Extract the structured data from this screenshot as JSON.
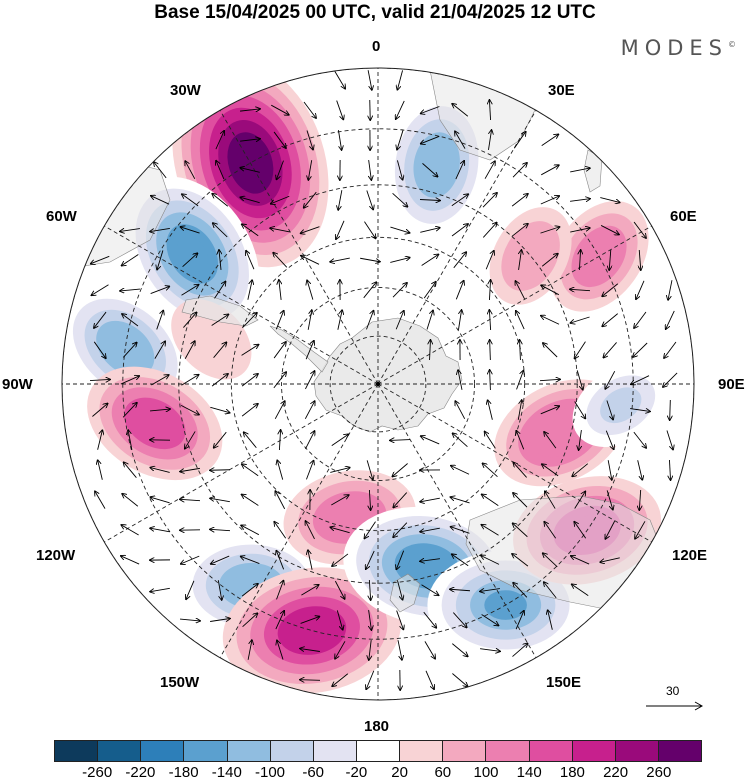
{
  "title": "Base 15/04/2025 00 UTC, valid 21/04/2025 12 UTC",
  "brand": "MODES",
  "brand_mark": "©",
  "longitude_labels": {
    "lon_0": "0",
    "lon_30e": "30E",
    "lon_60e": "60E",
    "lon_90e": "90E",
    "lon_120e": "120E",
    "lon_150e": "150E",
    "lon_180": "180",
    "lon_150w": "150W",
    "lon_120w": "120W",
    "lon_90w": "90W",
    "lon_60w": "60W",
    "lon_30w": "30W"
  },
  "reference_vector": {
    "value": "30"
  },
  "colorbar": {
    "colors": [
      "#0d3a5c",
      "#155d8c",
      "#2d7fb9",
      "#5ba0cf",
      "#90bde0",
      "#c3d2ea",
      "#e3e3f2",
      "#ffffff",
      "#f8d3d5",
      "#f3a9bf",
      "#ec7fb0",
      "#df4ea0",
      "#c7208d",
      "#9a0a7b",
      "#64006b"
    ],
    "ticks": [
      "-260",
      "-220",
      "-180",
      "-140",
      "-100",
      "-60",
      "-20",
      "20",
      "60",
      "100",
      "140",
      "180",
      "220",
      "260"
    ]
  },
  "anomalies": [
    {
      "lon": -30,
      "lat": -40,
      "value": 260
    },
    {
      "lon": -55,
      "lat": -45,
      "value": -180
    },
    {
      "lon": 15,
      "lat": -45,
      "value": -140
    },
    {
      "lon": -82,
      "lat": -40,
      "value": -140
    },
    {
      "lon": -100,
      "lat": -45,
      "value": 140
    },
    {
      "lon": -148,
      "lat": -43,
      "value": -140
    },
    {
      "lon": -165,
      "lat": -40,
      "value": 200
    },
    {
      "lon": -168,
      "lat": -62,
      "value": 120
    },
    {
      "lon": 165,
      "lat": -52,
      "value": -180
    },
    {
      "lon": 150,
      "lat": -40,
      "value": -160
    },
    {
      "lon": 125,
      "lat": -40,
      "value": 150
    },
    {
      "lon": 105,
      "lat": -52,
      "value": 130
    },
    {
      "lon": 60,
      "lat": -40,
      "value": 100
    },
    {
      "lon": 50,
      "lat": -50,
      "value": 70
    },
    {
      "lon": 95,
      "lat": -42,
      "value": -70
    },
    {
      "lon": -75,
      "lat": -55,
      "value": 50
    }
  ]
}
